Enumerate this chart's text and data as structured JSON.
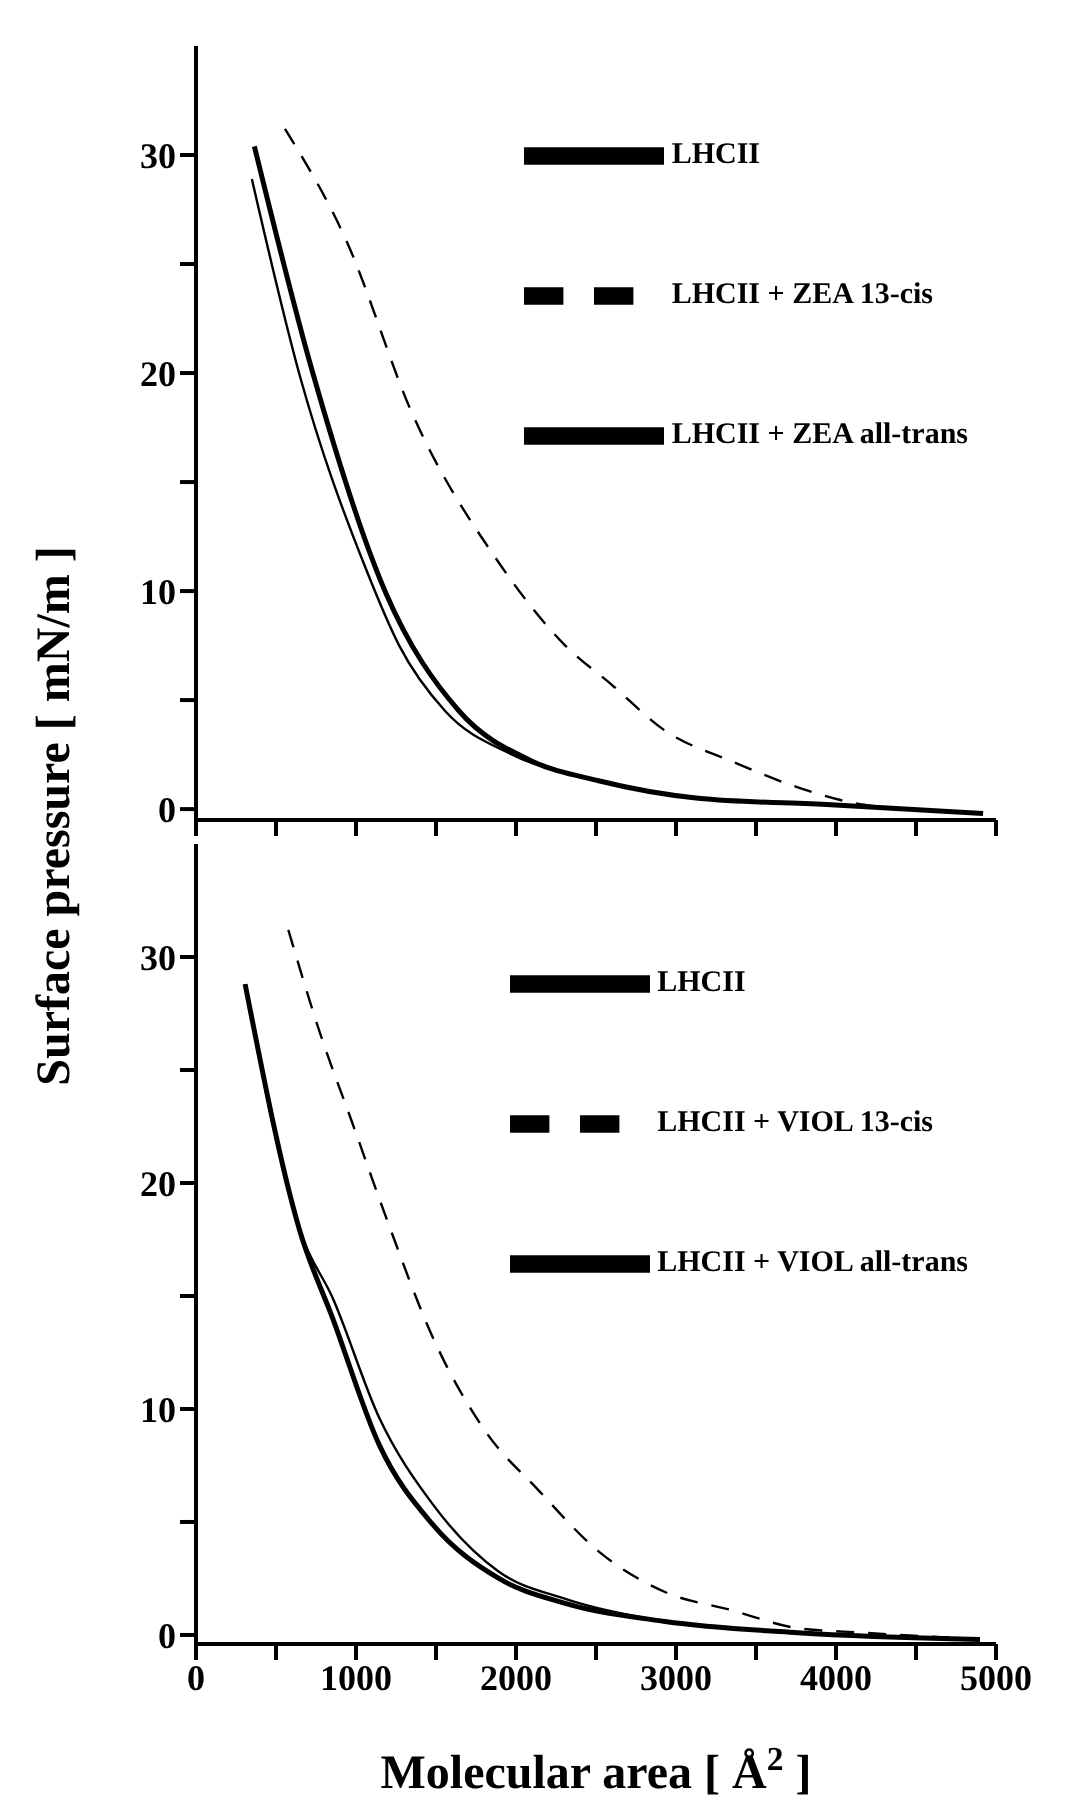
{
  "chart_data": [
    {
      "type": "line",
      "ylabel": "Surface pressure [ mN/m ]",
      "xlim": [
        0,
        5000
      ],
      "xticks": [
        0,
        {
          "value": 500,
          "label": null
        },
        1000,
        {
          "value": 1500,
          "label": null
        },
        2000,
        {
          "value": 2500,
          "label": null
        },
        3000,
        {
          "value": 3500,
          "label": null
        },
        4000,
        {
          "value": 4500,
          "label": null
        },
        5000
      ],
      "ylim": [
        -0.5,
        35
      ],
      "yticks": [
        0,
        {
          "value": 5,
          "label": null
        },
        10,
        {
          "value": 15,
          "label": null
        },
        20,
        {
          "value": 25,
          "label": null
        },
        30
      ],
      "tick_labels": "y",
      "legend": "top right",
      "grid": false,
      "series": [
        {
          "name": "LHCII",
          "color": "#000000",
          "line_style": "solid",
          "x": [
            349,
            648,
            1063,
            1270,
            1557,
            1976,
            2516,
            3138,
            3968,
            4919
          ],
          "values": [
            28.9,
            19.9,
            11.0,
            7.5,
            4.5,
            2.5,
            1.3,
            0.5,
            0.2,
            -0.2
          ]
        },
        {
          "name": "LHCII + ZEA all-trans",
          "color": "#000000",
          "line_style": "solid",
          "x": [
            365,
            730,
            1187,
            1644,
            2101,
            2516,
            3138,
            3968,
            4919
          ],
          "values": [
            30.4,
            20.0,
            9.9,
            4.5,
            2.2,
            1.3,
            0.5,
            0.2,
            -0.2
          ]
        },
        {
          "name": "LHCII + ZEA 13-cis",
          "color": "#000000",
          "line_style": "dashed",
          "x": [
            556,
            938,
            1354,
            1893,
            2308,
            2599,
            2931,
            3346,
            3761,
            4175,
            4919
          ],
          "values": [
            31.2,
            26.1,
            18.1,
            11.3,
            7.5,
            5.7,
            3.6,
            2.2,
            1.0,
            0.2,
            -0.2
          ]
        }
      ]
    },
    {
      "type": "line",
      "xlabel": "Molecular area [ Å$^{2}$ ]",
      "xlim": [
        0,
        5000
      ],
      "xticks": [
        0,
        {
          "value": 500,
          "label": null
        },
        1000,
        {
          "value": 1500,
          "label": null
        },
        2000,
        {
          "value": 2500,
          "label": null
        },
        3000,
        {
          "value": 3500,
          "label": null
        },
        4000,
        {
          "value": 4500,
          "label": null
        },
        5000
      ],
      "ylim": [
        -0.4,
        35
      ],
      "yticks": [
        0,
        {
          "value": 5,
          "label": null
        },
        10,
        {
          "value": 15,
          "label": null
        },
        20,
        {
          "value": 25,
          "label": null
        },
        30
      ],
      "legend": "top right",
      "grid": false,
      "series": [
        {
          "name": "LHCII",
          "color": "#000000",
          "line_style": "solid",
          "x": [
            307,
            648,
            855,
            1146,
            1478,
            1893,
            2308,
            2931,
            3761,
            4900
          ],
          "values": [
            28.8,
            17.9,
            14.9,
            9.6,
            5.8,
            2.8,
            1.6,
            0.6,
            0.1,
            -0.2
          ]
        },
        {
          "name": "LHCII + VIOL all-trans",
          "color": "#000000",
          "line_style": "solid",
          "x": [
            307,
            648,
            855,
            1146,
            1478,
            1893,
            2308,
            2931,
            3761,
            4900
          ],
          "values": [
            28.8,
            17.9,
            14.0,
            8.4,
            4.9,
            2.5,
            1.4,
            0.6,
            0.1,
            -0.2
          ]
        },
        {
          "name": "LHCII + VIOL 13-cis",
          "color": "#000000",
          "line_style": "dashed",
          "x": [
            577,
            772,
            980,
            1187,
            1478,
            1810,
            2141,
            2516,
            2931,
            3346,
            3761,
            4175,
            4900
          ],
          "values": [
            31.2,
            26.7,
            22.6,
            18.5,
            13.2,
            9.0,
            6.4,
            3.7,
            1.9,
            1.1,
            0.3,
            0.1,
            -0.2
          ]
        }
      ]
    }
  ]
}
